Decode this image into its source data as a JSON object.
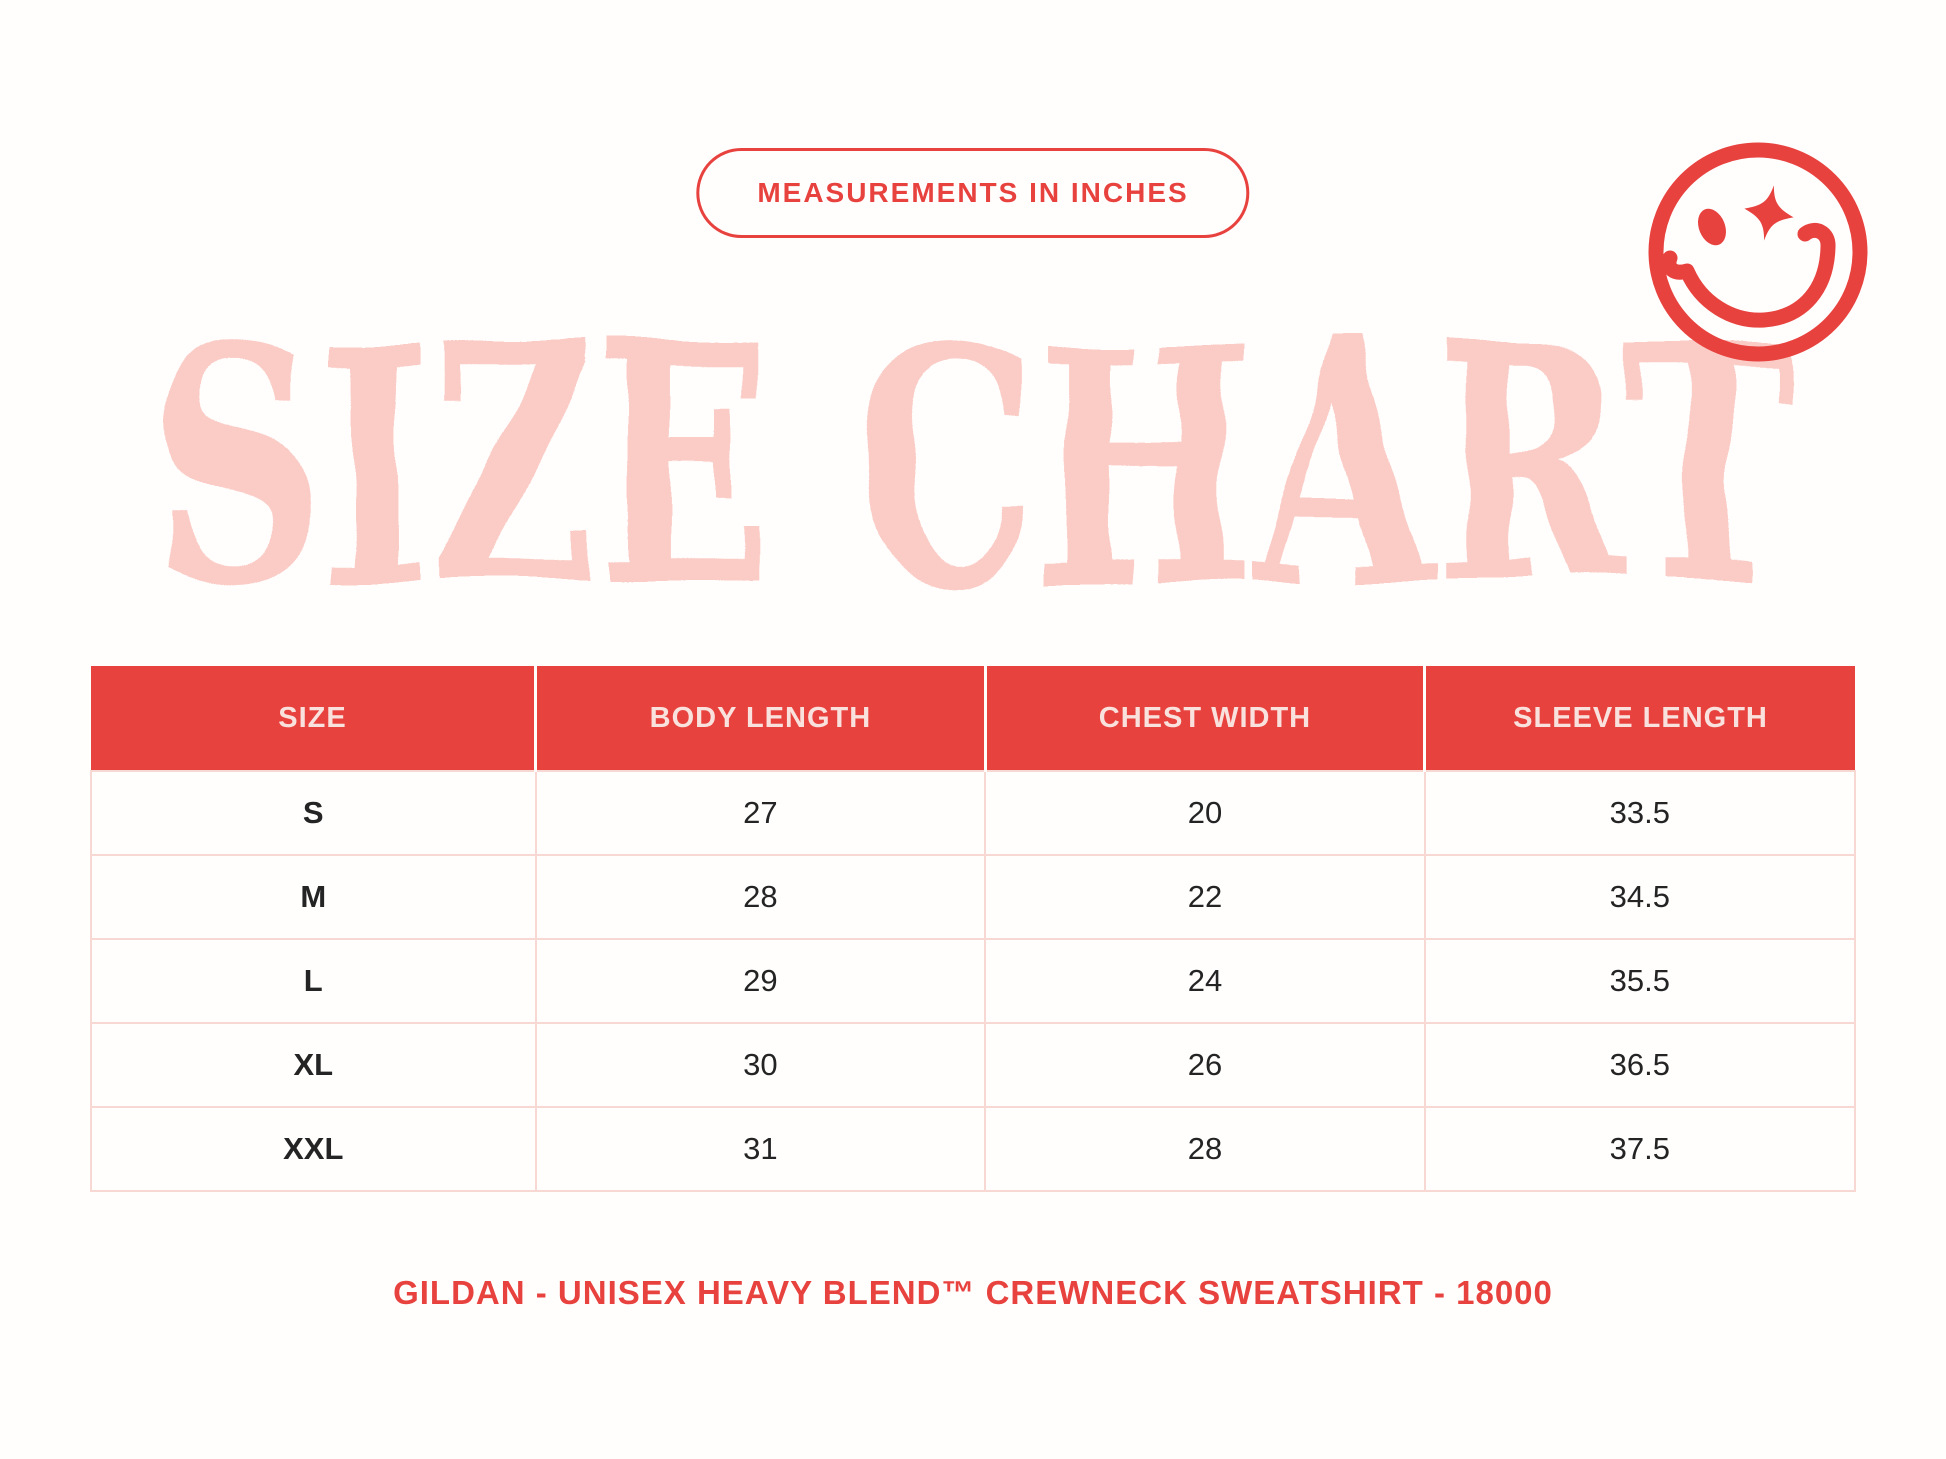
{
  "badge": {
    "label": "MEASUREMENTS IN INCHES"
  },
  "title": {
    "text": "SIZE CHART"
  },
  "icons": {
    "smiley": "winking-smiley-with-sparkle-eye-icon"
  },
  "colors": {
    "red": "#e8423f",
    "title_pink": "#fbccc6",
    "row_border": "#f8d8d2",
    "header_text": "#f9e2dd",
    "cell_text": "#242424",
    "background": "#fffefd"
  },
  "table": {
    "headers": [
      "SIZE",
      "BODY LENGTH",
      "CHEST WIDTH",
      "SLEEVE LENGTH"
    ],
    "rows": [
      [
        "S",
        "27",
        "20",
        "33.5"
      ],
      [
        "M",
        "28",
        "22",
        "34.5"
      ],
      [
        "L",
        "29",
        "24",
        "35.5"
      ],
      [
        "XL",
        "30",
        "26",
        "36.5"
      ],
      [
        "XXL",
        "31",
        "28",
        "37.5"
      ]
    ]
  },
  "footer": {
    "text": "GILDAN - UNISEX HEAVY BLEND™ CREWNECK SWEATSHIRT - 18000"
  }
}
